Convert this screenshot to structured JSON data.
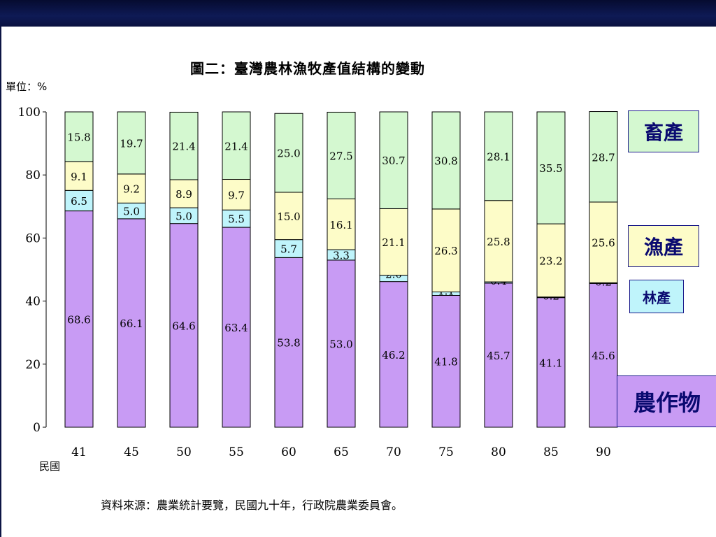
{
  "slide": {
    "title": "圖二：臺灣農林漁牧產值結構的變動",
    "unit_label": "單位：%",
    "xaxis_name": "民國",
    "source": "資料來源：農業統計要覽，民國九十年，行政院農業委員會。"
  },
  "legend": {
    "livestock": "畜產",
    "fishery": "漁產",
    "forestry": "林產",
    "crops": "農作物"
  },
  "chart_data": {
    "type": "bar",
    "stacked": true,
    "categories": [
      "41",
      "45",
      "50",
      "55",
      "60",
      "65",
      "70",
      "75",
      "80",
      "85",
      "90"
    ],
    "series": [
      {
        "name": "農作物",
        "color": "#c89bf4",
        "values": [
          68.6,
          66.1,
          64.6,
          63.4,
          53.8,
          53.0,
          46.2,
          41.8,
          45.7,
          41.1,
          45.6
        ]
      },
      {
        "name": "林產",
        "color": "#bff4fb",
        "values": [
          6.5,
          5.0,
          5.0,
          5.5,
          5.7,
          3.3,
          2.0,
          1.1,
          0.4,
          0.2,
          0.2
        ]
      },
      {
        "name": "漁產",
        "color": "#fdfcc8",
        "values": [
          9.1,
          9.2,
          8.9,
          9.7,
          15.0,
          16.1,
          21.1,
          26.3,
          25.8,
          23.2,
          25.6
        ]
      },
      {
        "name": "畜產",
        "color": "#d4f8d0",
        "values": [
          15.8,
          19.7,
          21.4,
          21.4,
          25.0,
          27.5,
          30.7,
          30.8,
          28.1,
          35.5,
          28.7
        ]
      }
    ],
    "ylim": [
      0,
      100
    ],
    "yticks": [
      0,
      20,
      40,
      60,
      80,
      100
    ],
    "xlabel": "民國",
    "ylabel": "單位：%",
    "grid": false,
    "legend_position": "right"
  }
}
